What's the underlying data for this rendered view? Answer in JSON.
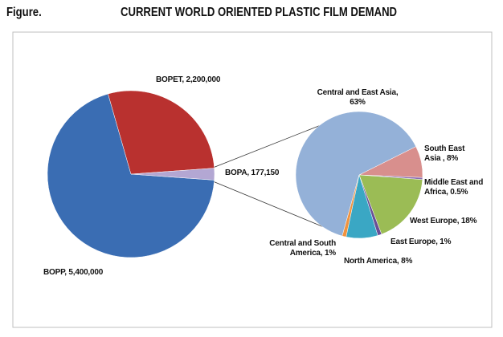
{
  "header": {
    "label": "Figure.",
    "title": "CURRENT WORLD ORIENTED PLASTIC FILM DEMAND"
  },
  "chart_data": [
    {
      "type": "pie",
      "values": [
        5400000,
        2200000,
        177150
      ],
      "value_labels": [
        "BOPP, 5,400,000",
        "BOPET, 2,200,000",
        "BOPA, 177,150"
      ],
      "colors": [
        "#3a6db3",
        "#b9312f",
        "#b3a7d3"
      ]
    },
    {
      "type": "pie",
      "values": [
        63,
        8,
        0.5,
        18,
        1,
        8,
        1
      ],
      "value_labels": [
        "Central and East Asia, 63%",
        "South East Asia , 8%",
        "Middle East and Africa, 0.5%",
        "West Europe, 18%",
        "East Europe, 1%",
        "North America, 8%",
        "Central and South America, 1%"
      ],
      "colors": [
        "#94b1d8",
        "#d88f8d",
        "#8a6bb0",
        "#9bbc55",
        "#6a4f96",
        "#3aa7c4",
        "#f0933f"
      ]
    }
  ]
}
